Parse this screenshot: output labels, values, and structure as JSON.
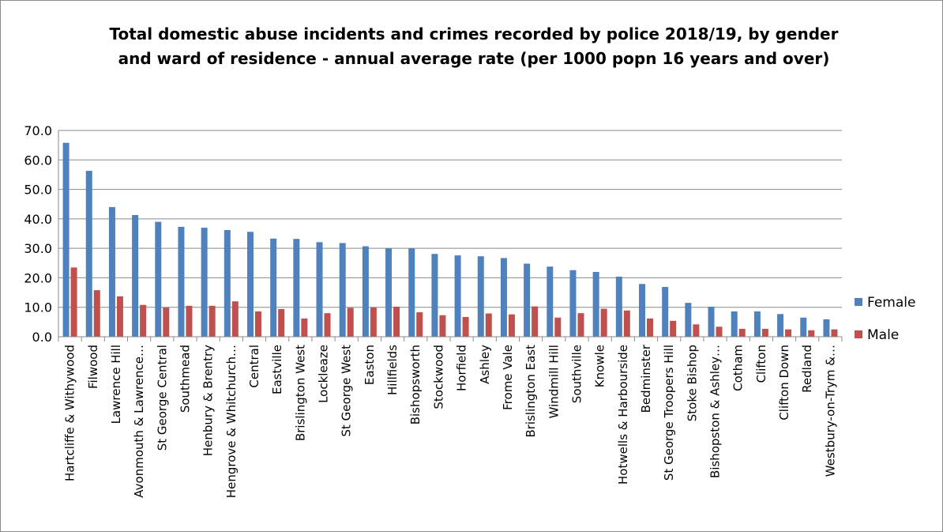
{
  "chart_data": {
    "type": "bar",
    "title_line1": "Total domestic abuse incidents and crimes recorded by police 2018/19, by gender",
    "title_line2": "and ward of residence - annual average rate (per 1000 popn 16 years and over)",
    "xlabel": "",
    "ylabel": "",
    "ylim": [
      0,
      70
    ],
    "yticks": [
      "0.0",
      "10.0",
      "20.0",
      "30.0",
      "40.0",
      "50.0",
      "60.0",
      "70.0"
    ],
    "grid": true,
    "legend_position": "right",
    "categories": [
      "Hartcliffe & Withywood",
      "Filwood",
      "Lawrence Hill",
      "Avonmouth & Lawrence…",
      "St George Central",
      "Southmead",
      "Henbury & Brentry",
      "Hengrove & Whitchurch…",
      "Central",
      "Eastville",
      "Brislington West",
      "Lockleaze",
      "St George West",
      "Easton",
      "Hillfields",
      "Bishopsworth",
      "Stockwood",
      "Horfield",
      "Ashley",
      "Frome Vale",
      "Brislington East",
      "Windmill Hill",
      "Southville",
      "Knowle",
      "Hotwells & Harbourside",
      "Bedminster",
      "St George Troopers Hill",
      "Stoke Bishop",
      "Bishopston & Ashley…",
      "Cotham",
      "Clifton",
      "Clifton Down",
      "Redland",
      "Westbury-on-Trym &…"
    ],
    "series": [
      {
        "name": "Female",
        "color": "#4f81bd",
        "values": [
          65.8,
          56.3,
          44.0,
          41.3,
          39.0,
          37.3,
          37.0,
          36.2,
          35.6,
          33.3,
          33.2,
          32.1,
          31.8,
          30.7,
          30.0,
          30.0,
          28.1,
          27.6,
          27.3,
          26.7,
          24.8,
          23.8,
          22.6,
          22.0,
          20.4,
          17.9,
          16.9,
          11.5,
          10.2,
          8.6,
          8.6,
          7.7,
          6.5,
          5.9
        ]
      },
      {
        "name": "Male",
        "color": "#c0504d",
        "values": [
          23.5,
          15.8,
          13.7,
          10.8,
          9.9,
          10.5,
          10.5,
          12.0,
          8.6,
          9.4,
          6.2,
          8.0,
          9.8,
          9.9,
          10.2,
          8.3,
          7.3,
          6.7,
          7.9,
          7.6,
          10.3,
          6.5,
          8.0,
          9.5,
          8.9,
          6.2,
          5.4,
          4.2,
          3.4,
          2.7,
          2.7,
          2.5,
          2.2,
          2.5
        ]
      }
    ]
  }
}
